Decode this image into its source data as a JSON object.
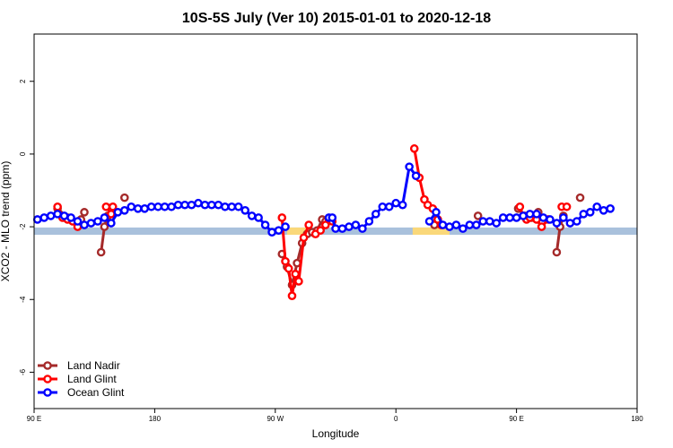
{
  "chart_data": {
    "type": "line",
    "title": "10S-5S July (Ver 10)   2015-01-01 to 2020-12-18",
    "xlabel": "Longitude",
    "ylabel": "XCO2 - MLO trend (ppm)",
    "xlim": [
      -90,
      270
    ],
    "ylim": [
      -7,
      3.3
    ],
    "x_ticks": [
      {
        "value": -90,
        "label": "90 E"
      },
      {
        "value": -18,
        "label": "180"
      },
      {
        "value": 54,
        "label": "90 W"
      },
      {
        "value": 126,
        "label": "0"
      },
      {
        "value": 198,
        "label": "90 E"
      },
      {
        "value": 270,
        "label": "180"
      }
    ],
    "y_ticks": [
      {
        "value": -6,
        "label": "-6"
      },
      {
        "value": -4,
        "label": "-4"
      },
      {
        "value": -2,
        "label": "-2"
      },
      {
        "value": 0,
        "label": "0"
      },
      {
        "value": 2,
        "label": "2"
      }
    ],
    "grid": false,
    "legend_position": "bottom-left",
    "background_band": {
      "y_range": [
        -2.22,
        -2.02
      ],
      "ocean_color": "#a9c1dc",
      "land_color": "#fad87a",
      "land_segments": [
        [
          61,
          75
        ],
        [
          136,
          158
        ]
      ]
    },
    "series": [
      {
        "name": "Land Nadir",
        "color": "#a52a2a",
        "segments": [
          [
            [
              -76,
              -1.5
            ],
            [
              -70,
              -1.75
            ]
          ],
          [
            [
              -64,
              -1.9
            ],
            [
              -62,
              -1.8
            ],
            [
              -60,
              -1.6
            ]
          ],
          [
            [
              -50,
              -2.7
            ],
            [
              -48,
              -2.0
            ],
            [
              -46,
              -1.7
            ]
          ],
          [
            [
              -36,
              -1.2
            ]
          ],
          [
            [
              58,
              -2.75
            ],
            [
              61,
              -3.1
            ],
            [
              64,
              -3.6
            ],
            [
              67,
              -3.0
            ],
            [
              70,
              -2.45
            ],
            [
              73,
              -2.2
            ],
            [
              76,
              -2.15
            ],
            [
              79,
              -2.1
            ],
            [
              82,
              -1.8
            ],
            [
              84,
              -1.85
            ]
          ],
          [
            [
              149,
              -1.95
            ],
            [
              151,
              -1.8
            ]
          ],
          [
            [
              175,
              -1.7
            ]
          ],
          [
            [
              199,
              -1.5
            ],
            [
              203,
              -1.7
            ],
            [
              207,
              -1.75
            ],
            [
              211,
              -1.6
            ]
          ],
          [
            [
              222,
              -2.7
            ],
            [
              224,
              -2.0
            ],
            [
              226,
              -1.7
            ]
          ],
          [
            [
              236,
              -1.2
            ]
          ]
        ]
      },
      {
        "name": "Land Glint",
        "color": "#ff0000",
        "segments": [
          [
            [
              -76,
              -1.45
            ],
            [
              -73,
              -1.75
            ],
            [
              -70,
              -1.8
            ],
            [
              -67,
              -1.85
            ],
            [
              -64,
              -2.0
            ]
          ],
          [
            [
              -47,
              -1.45
            ],
            [
              -44,
              -1.65
            ],
            [
              -43,
              -1.45
            ]
          ],
          [
            [
              58,
              -1.75
            ],
            [
              60,
              -2.95
            ],
            [
              62,
              -3.15
            ],
            [
              64,
              -3.9
            ],
            [
              66,
              -3.3
            ],
            [
              68,
              -3.5
            ],
            [
              71,
              -2.3
            ],
            [
              74,
              -1.95
            ]
          ],
          [
            [
              78,
              -2.2
            ],
            [
              81,
              -2.1
            ],
            [
              84,
              -1.95
            ],
            [
              86,
              -1.8
            ],
            [
              88,
              -1.85
            ]
          ],
          [
            [
              137,
              0.15
            ],
            [
              140,
              -0.65
            ],
            [
              143,
              -1.25
            ],
            [
              145,
              -1.4
            ],
            [
              148,
              -1.5
            ],
            [
              151,
              -1.8
            ],
            [
              153,
              -1.95
            ]
          ],
          [
            [
              200,
              -1.45
            ],
            [
              202,
              -1.7
            ],
            [
              204,
              -1.8
            ],
            [
              206,
              -1.75
            ],
            [
              210,
              -1.8
            ],
            [
              213,
              -2.0
            ],
            [
              217,
              -1.8
            ]
          ],
          [
            [
              225,
              -1.45
            ],
            [
              228,
              -1.45
            ]
          ]
        ]
      },
      {
        "name": "Ocean Glint",
        "color": "#0000ff",
        "segments": [
          [
            [
              -88,
              -1.8
            ],
            [
              -84,
              -1.75
            ],
            [
              -80,
              -1.7
            ],
            [
              -76,
              -1.65
            ],
            [
              -72,
              -1.7
            ],
            [
              -68,
              -1.75
            ],
            [
              -64,
              -1.85
            ],
            [
              -60,
              -1.95
            ],
            [
              -56,
              -1.9
            ],
            [
              -52,
              -1.85
            ],
            [
              -48,
              -1.75
            ],
            [
              -44,
              -1.9
            ],
            [
              -40,
              -1.6
            ],
            [
              -36,
              -1.55
            ],
            [
              -32,
              -1.45
            ],
            [
              -28,
              -1.5
            ],
            [
              -24,
              -1.5
            ],
            [
              -20,
              -1.45
            ],
            [
              -16,
              -1.45
            ],
            [
              -12,
              -1.45
            ],
            [
              -8,
              -1.45
            ],
            [
              -4,
              -1.4
            ],
            [
              0,
              -1.4
            ],
            [
              4,
              -1.4
            ],
            [
              8,
              -1.35
            ],
            [
              12,
              -1.4
            ],
            [
              16,
              -1.4
            ],
            [
              20,
              -1.4
            ],
            [
              24,
              -1.45
            ],
            [
              28,
              -1.45
            ],
            [
              32,
              -1.45
            ],
            [
              36,
              -1.55
            ],
            [
              40,
              -1.7
            ],
            [
              44,
              -1.75
            ],
            [
              48,
              -1.95
            ],
            [
              52,
              -2.15
            ],
            [
              56,
              -2.1
            ],
            [
              60,
              -2.0
            ]
          ],
          [
            [
              86,
              -1.75
            ],
            [
              88,
              -1.75
            ],
            [
              90,
              -2.05
            ],
            [
              94,
              -2.05
            ],
            [
              98,
              -2.0
            ],
            [
              102,
              -1.95
            ],
            [
              106,
              -2.05
            ],
            [
              110,
              -1.85
            ],
            [
              114,
              -1.65
            ],
            [
              118,
              -1.45
            ],
            [
              122,
              -1.45
            ],
            [
              126,
              -1.35
            ],
            [
              130,
              -1.4
            ],
            [
              134,
              -0.35
            ],
            [
              138,
              -0.6
            ]
          ],
          [
            [
              146,
              -1.85
            ],
            [
              150,
              -1.6
            ],
            [
              154,
              -1.95
            ],
            [
              158,
              -2.0
            ],
            [
              162,
              -1.95
            ],
            [
              166,
              -2.05
            ],
            [
              170,
              -1.95
            ],
            [
              174,
              -1.95
            ],
            [
              178,
              -1.85
            ],
            [
              182,
              -1.85
            ],
            [
              186,
              -1.9
            ],
            [
              190,
              -1.75
            ],
            [
              194,
              -1.75
            ],
            [
              198,
              -1.75
            ],
            [
              202,
              -1.7
            ],
            [
              206,
              -1.65
            ],
            [
              210,
              -1.65
            ],
            [
              214,
              -1.75
            ],
            [
              218,
              -1.8
            ],
            [
              222,
              -1.9
            ],
            [
              226,
              -1.75
            ],
            [
              230,
              -1.9
            ],
            [
              234,
              -1.85
            ],
            [
              238,
              -1.65
            ],
            [
              242,
              -1.6
            ],
            [
              246,
              -1.45
            ],
            [
              250,
              -1.55
            ],
            [
              254,
              -1.5
            ]
          ]
        ]
      }
    ]
  }
}
